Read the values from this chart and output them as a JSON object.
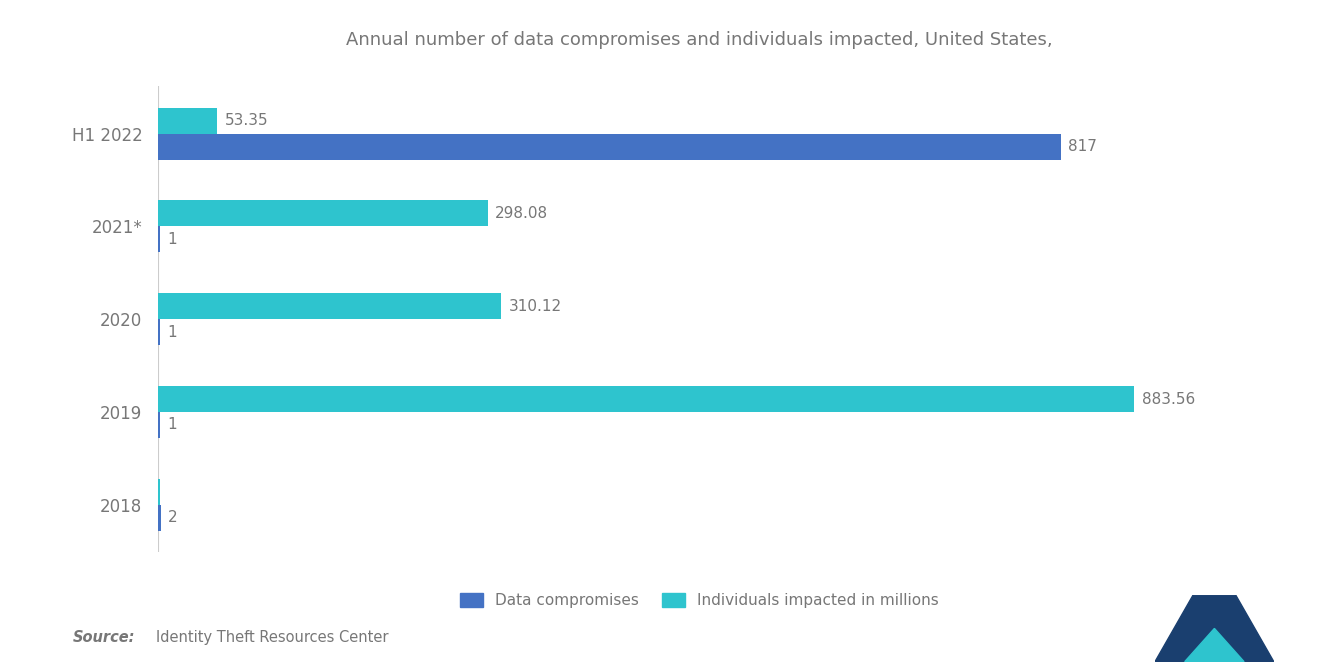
{
  "title": "Annual number of data compromises and individuals impacted, United States,",
  "years": [
    "H1 2022",
    "2021*",
    "2020",
    "2019",
    "2018"
  ],
  "data_compromises": [
    817,
    1,
    1,
    1,
    2
  ],
  "individuals_impacted": [
    53.35,
    298.08,
    310.12,
    883.56,
    1
  ],
  "bar_color_compromises": "#4472C4",
  "bar_color_individuals": "#2EC4CE",
  "label_compromises": "Data compromises",
  "label_individuals": "Individuals impacted in millions",
  "source_bold": "Source:",
  "source_rest": "  Identity Theft Resources Center",
  "background_color": "#FFFFFF",
  "text_color": "#777777",
  "xlim_max": 980,
  "bar_height": 0.28,
  "label_fontsize": 11,
  "title_fontsize": 13,
  "tick_fontsize": 12,
  "dc_labels": [
    "817",
    "1",
    "1",
    "1",
    "2"
  ],
  "ind_labels": [
    "53.35",
    "298.08",
    "310.12",
    "883.56",
    ""
  ],
  "show_ind_label": [
    true,
    true,
    true,
    true,
    false
  ]
}
